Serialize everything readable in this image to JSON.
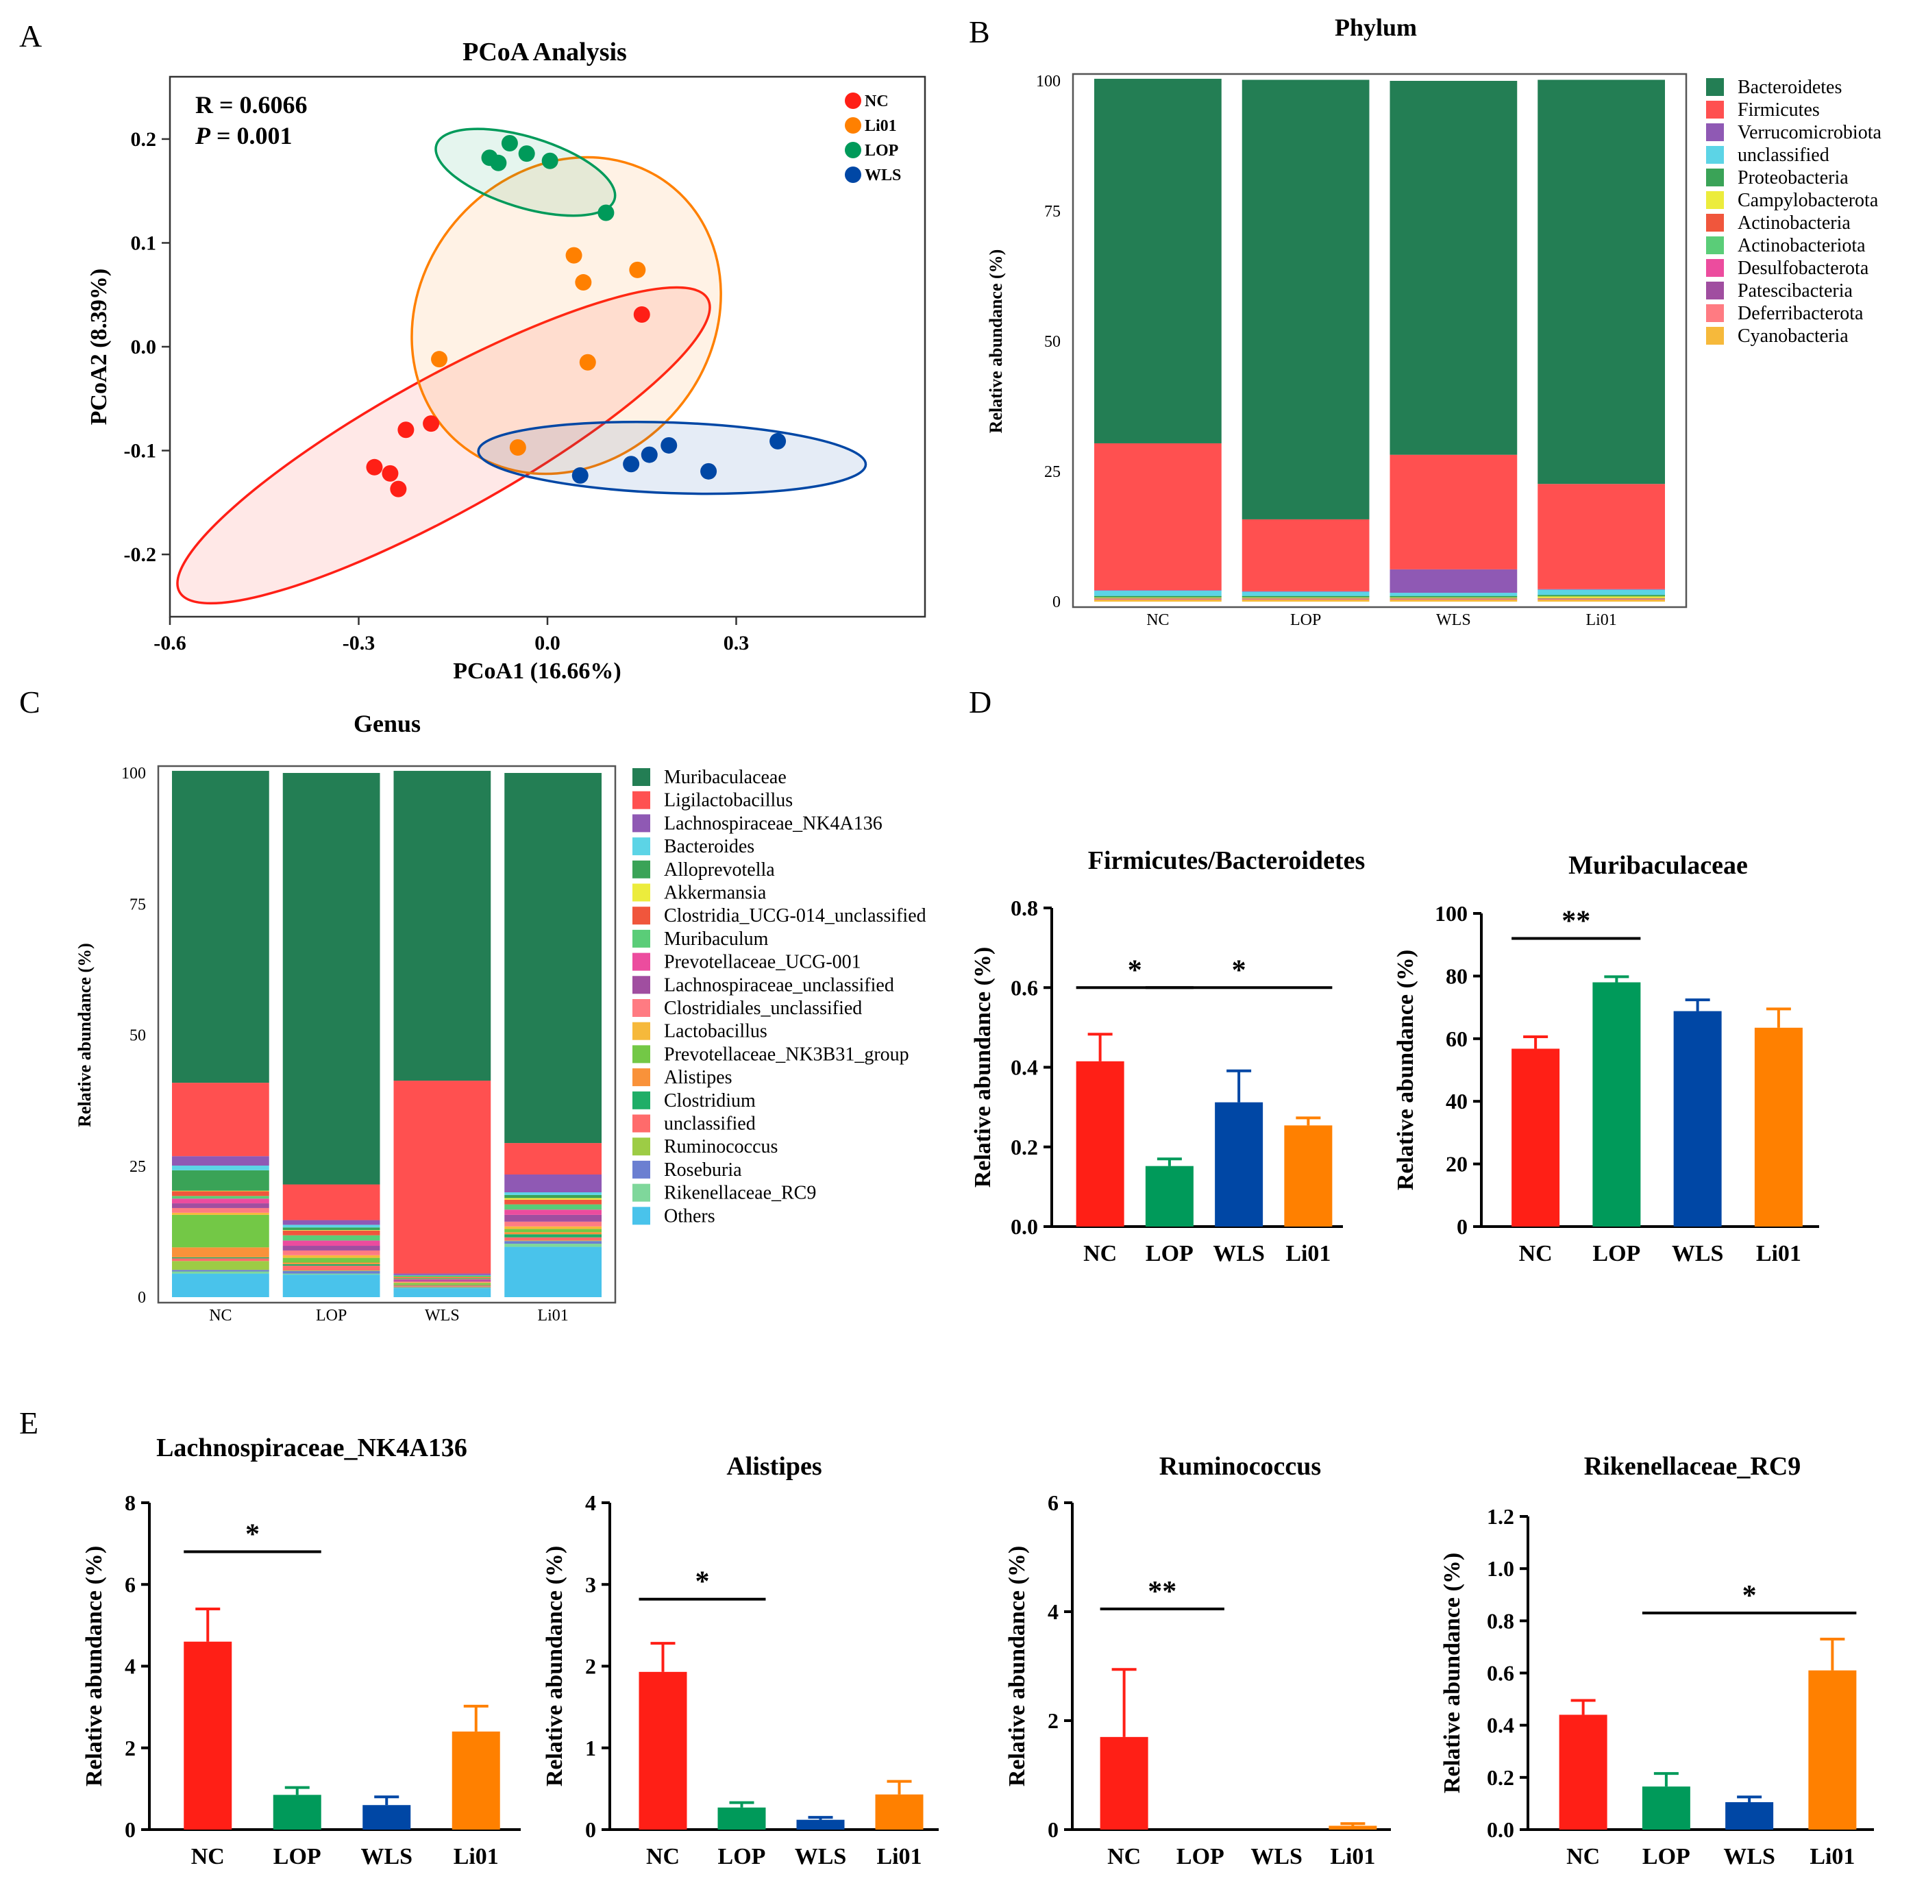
{
  "figure": {
    "panel_letters": [
      "A",
      "B",
      "C",
      "D",
      "E"
    ],
    "colors": {
      "NC": "#ff1f16",
      "Li01": "#ff8000",
      "LOP": "#009a5a",
      "WLS": "#0047a5"
    }
  },
  "chart_data": [
    {
      "panel": "A",
      "type": "scatter",
      "title": "PCoA Analysis",
      "xlabel": "PCoA1 (16.66%)",
      "ylabel": "PCoA2 (8.39%)",
      "xlim": [
        -0.6,
        0.6
      ],
      "ylim": [
        -0.26,
        0.26
      ],
      "xticks": [
        -0.6,
        -0.3,
        0.0,
        0.3
      ],
      "xtick_labels": [
        "-0.6",
        "-0.3",
        "0.0",
        "0.3"
      ],
      "yticks": [
        0.2,
        0.1,
        0.0,
        -0.1,
        -0.2
      ],
      "ytick_labels": [
        "0.2",
        "0.1",
        "0.0",
        "-0.1",
        "-0.2"
      ],
      "stat_r": "R = 0.6066",
      "stat_p_label": "P",
      "stat_p_value": " = 0.001",
      "legend": [
        "NC",
        "Li01",
        "LOP",
        "WLS"
      ],
      "series": [
        {
          "name": "NC",
          "points": [
            [
              0.15,
              0.031
            ],
            [
              -0.225,
              -0.08
            ],
            [
              -0.185,
              -0.074
            ],
            [
              -0.275,
              -0.116
            ],
            [
              -0.25,
              -0.122
            ],
            [
              -0.237,
              -0.137
            ]
          ],
          "ellipse": {
            "cx": -0.165,
            "cy": -0.095,
            "rx": 0.48,
            "ry": 0.065,
            "angle_deg": 29
          }
        },
        {
          "name": "Li01",
          "points": [
            [
              0.042,
              0.088
            ],
            [
              0.143,
              0.074
            ],
            [
              0.057,
              0.062
            ],
            [
              -0.172,
              -0.012
            ],
            [
              0.064,
              -0.015
            ],
            [
              -0.047,
              -0.097
            ]
          ],
          "ellipse": {
            "cx": 0.03,
            "cy": 0.03,
            "rx": 0.265,
            "ry": 0.14,
            "angle_deg": 50
          }
        },
        {
          "name": "LOP",
          "points": [
            [
              -0.092,
              0.182
            ],
            [
              -0.078,
              0.177
            ],
            [
              -0.06,
              0.196
            ],
            [
              -0.033,
              0.186
            ],
            [
              0.004,
              0.179
            ],
            [
              0.093,
              0.129
            ]
          ],
          "ellipse": {
            "cx": -0.035,
            "cy": 0.168,
            "rx": 0.148,
            "ry": 0.034,
            "angle_deg": -17
          }
        },
        {
          "name": "WLS",
          "points": [
            [
              0.052,
              -0.124
            ],
            [
              0.133,
              -0.113
            ],
            [
              0.162,
              -0.104
            ],
            [
              0.193,
              -0.095
            ],
            [
              0.256,
              -0.12
            ],
            [
              0.366,
              -0.091
            ]
          ],
          "ellipse": {
            "cx": 0.198,
            "cy": -0.107,
            "rx": 0.308,
            "ry": 0.034,
            "angle_deg": -2
          }
        }
      ]
    },
    {
      "panel": "B",
      "type": "bar",
      "stacked": true,
      "title": "Phylum",
      "xlabel": "",
      "ylabel": "Relative abundance (%)",
      "ylim": [
        0,
        100
      ],
      "yticks": [
        0,
        25,
        50,
        75,
        100
      ],
      "categories": [
        "NC",
        "LOP",
        "WLS",
        "Li01"
      ],
      "series": [
        {
          "name": "Bacteroidetes",
          "color": "#237e54",
          "values": [
            70.0,
            84.4,
            71.8,
            77.6
          ]
        },
        {
          "name": "Firmicutes",
          "color": "#ff5050",
          "values": [
            28.2,
            13.8,
            22.0,
            20.2
          ]
        },
        {
          "name": "Verrucomicrobiota",
          "color": "#8f59b4",
          "values": [
            0.1,
            0.1,
            4.5,
            0.1
          ]
        },
        {
          "name": "unclassified",
          "color": "#5cd4e6",
          "values": [
            1.0,
            0.8,
            0.6,
            1.0
          ]
        },
        {
          "name": "Proteobacteria",
          "color": "#3aa357",
          "values": [
            0.3,
            0.3,
            0.3,
            0.3
          ]
        },
        {
          "name": "Campylobacterota",
          "color": "#ecec3c",
          "values": [
            0.1,
            0.1,
            0.1,
            0.3
          ]
        },
        {
          "name": "Actinobacteria",
          "color": "#f0563c",
          "values": [
            0.1,
            0.1,
            0.1,
            0.1
          ]
        },
        {
          "name": "Actinobacteriota",
          "color": "#5acd78",
          "values": [
            0.05,
            0.05,
            0.05,
            0.05
          ]
        },
        {
          "name": "Desulfobacterota",
          "color": "#ec4c9e",
          "values": [
            0.05,
            0.05,
            0.05,
            0.05
          ]
        },
        {
          "name": "Patescibacteria",
          "color": "#a04ea0",
          "values": [
            0.05,
            0.05,
            0.05,
            0.05
          ]
        },
        {
          "name": "Deferribacterota",
          "color": "#ff7b82",
          "values": [
            0.05,
            0.05,
            0.05,
            0.05
          ]
        },
        {
          "name": "Cyanobacteria",
          "color": "#f6b93b",
          "values": [
            0.4,
            0.4,
            0.4,
            0.4
          ]
        }
      ]
    },
    {
      "panel": "C",
      "type": "bar",
      "stacked": true,
      "title": "Genus",
      "xlabel": "",
      "ylabel": "Relative abundance (%)",
      "ylim": [
        0,
        100
      ],
      "yticks": [
        0,
        25,
        50,
        75,
        100
      ],
      "categories": [
        "NC",
        "LOP",
        "WLS",
        "Li01"
      ],
      "series": [
        {
          "name": "Muribaculaceae",
          "color": "#237e54",
          "values": [
            59.5,
            78.5,
            59.1,
            70.6
          ]
        },
        {
          "name": "Ligilactobacillus",
          "color": "#ff5050",
          "values": [
            14.0,
            6.8,
            36.8,
            6.0
          ]
        },
        {
          "name": "Lachnospiraceae_NK4A136",
          "color": "#8f59b4",
          "values": [
            1.8,
            0.9,
            0.3,
            3.4
          ]
        },
        {
          "name": "Bacteroides",
          "color": "#5cd4e6",
          "values": [
            0.9,
            0.5,
            0.1,
            0.5
          ]
        },
        {
          "name": "Alloprevotella",
          "color": "#3aa357",
          "values": [
            3.9,
            0.5,
            0.2,
            0.6
          ]
        },
        {
          "name": "Akkermansia",
          "color": "#ecec3c",
          "values": [
            0.1,
            0.1,
            0.1,
            0.3
          ]
        },
        {
          "name": "Clostridia_UCG-014_unclassified",
          "color": "#f0563c",
          "values": [
            0.9,
            0.9,
            0.2,
            0.9
          ]
        },
        {
          "name": "Muribaculum",
          "color": "#5acd78",
          "values": [
            0.5,
            1.0,
            0.2,
            1.0
          ]
        },
        {
          "name": "Prevotellaceae_UCG-001",
          "color": "#ec4c9e",
          "values": [
            0.9,
            1.0,
            0.2,
            1.0
          ]
        },
        {
          "name": "Lachnospiraceae_unclassified",
          "color": "#a04ea0",
          "values": [
            0.9,
            0.9,
            0.2,
            1.3
          ]
        },
        {
          "name": "Clostridiales_unclassified",
          "color": "#ff7b82",
          "values": [
            0.9,
            0.9,
            0.2,
            0.9
          ]
        },
        {
          "name": "Lactobacillus",
          "color": "#f6b93b",
          "values": [
            0.4,
            0.5,
            0.1,
            0.5
          ]
        },
        {
          "name": "Prevotellaceae_NK3B31_group",
          "color": "#73c846",
          "values": [
            6.2,
            0.9,
            0.3,
            0.6
          ]
        },
        {
          "name": "Alistipes",
          "color": "#f9923a",
          "values": [
            1.9,
            0.3,
            0.1,
            0.4
          ]
        },
        {
          "name": "Clostridium",
          "color": "#1fae67",
          "values": [
            0.2,
            0.3,
            0.1,
            0.6
          ]
        },
        {
          "name": "unclassified",
          "color": "#ff6b6b",
          "values": [
            0.5,
            0.9,
            0.2,
            0.6
          ]
        },
        {
          "name": "Ruminococcus",
          "color": "#9dcc45",
          "values": [
            1.7,
            0.1,
            0.1,
            0.1
          ]
        },
        {
          "name": "Roseburia",
          "color": "#6b7fd1",
          "values": [
            0.3,
            0.5,
            0.1,
            0.5
          ]
        },
        {
          "name": "Rikenellaceae_RC9",
          "color": "#7fd79b",
          "values": [
            0.4,
            0.2,
            0.1,
            0.6
          ]
        },
        {
          "name": "Others",
          "color": "#49c3eb",
          "values": [
            4.5,
            4.3,
            1.7,
            9.6
          ]
        }
      ]
    },
    {
      "panel": "D",
      "type": "bar",
      "title": "Firmicutes/Bacteroidetes",
      "xlabel": "",
      "ylabel": "Relative abundance (%)",
      "ylim": [
        0,
        0.8
      ],
      "yticks": [
        0.0,
        0.2,
        0.4,
        0.6,
        0.8
      ],
      "ytick_labels": [
        "0.0",
        "0.2",
        "0.4",
        "0.6",
        "0.8"
      ],
      "categories": [
        "NC",
        "LOP",
        "WLS",
        "Li01"
      ],
      "values": [
        0.415,
        0.152,
        0.312,
        0.254
      ],
      "errors": [
        0.068,
        0.018,
        0.079,
        0.019
      ],
      "significance": [
        {
          "from": 0,
          "to": 1,
          "y": 0.6,
          "label": "*"
        },
        {
          "from": 1,
          "to": 3,
          "y": 0.6,
          "label": "*"
        }
      ]
    },
    {
      "panel": "D",
      "type": "bar",
      "title": "Muribaculaceae",
      "xlabel": "",
      "ylabel": "Relative abundance (%)",
      "ylim": [
        0,
        100
      ],
      "yticks": [
        0,
        20,
        40,
        60,
        80,
        100
      ],
      "ytick_labels": [
        "0",
        "20",
        "40",
        "60",
        "80",
        "100"
      ],
      "categories": [
        "NC",
        "LOP",
        "WLS",
        "Li01"
      ],
      "values": [
        56.8,
        78.0,
        68.8,
        63.5
      ],
      "errors": [
        3.8,
        1.8,
        3.6,
        6.0
      ],
      "significance": [
        {
          "from": 0,
          "to": 1,
          "y": 92,
          "label": "**"
        }
      ]
    },
    {
      "panel": "E",
      "type": "bar",
      "title": "Lachnospiraceae_NK4A136",
      "xlabel": "",
      "ylabel": "Relative abundance (%)",
      "ylim": [
        0,
        8
      ],
      "yticks": [
        0,
        2,
        4,
        6,
        8
      ],
      "ytick_labels": [
        "0",
        "2",
        "4",
        "6",
        "8"
      ],
      "categories": [
        "NC",
        "LOP",
        "WLS",
        "Li01"
      ],
      "values": [
        4.6,
        0.85,
        0.6,
        2.4
      ],
      "errors": [
        0.8,
        0.18,
        0.2,
        0.62
      ],
      "significance": [
        {
          "from": 0,
          "to": 1,
          "y": 6.8,
          "label": "*"
        }
      ]
    },
    {
      "panel": "E",
      "type": "bar",
      "title": "Alistipes",
      "xlabel": "",
      "ylabel": "Relative abundance (%)",
      "ylim": [
        0,
        4
      ],
      "yticks": [
        0,
        1,
        2,
        3,
        4
      ],
      "ytick_labels": [
        "0",
        "1",
        "2",
        "3",
        "4"
      ],
      "categories": [
        "NC",
        "LOP",
        "WLS",
        "Li01"
      ],
      "values": [
        1.93,
        0.27,
        0.12,
        0.43
      ],
      "errors": [
        0.35,
        0.06,
        0.03,
        0.16
      ],
      "significance": [
        {
          "from": 0,
          "to": 1,
          "y": 2.82,
          "label": "*"
        }
      ]
    },
    {
      "panel": "E",
      "type": "bar",
      "title": "Ruminococcus",
      "xlabel": "",
      "ylabel": "Relative abundance (%)",
      "ylim": [
        0,
        6
      ],
      "yticks": [
        0,
        2,
        4,
        6
      ],
      "ytick_labels": [
        "0",
        "2",
        "4",
        "6"
      ],
      "categories": [
        "NC",
        "LOP",
        "WLS",
        "Li01"
      ],
      "values": [
        1.7,
        0.0,
        0.0,
        0.07
      ],
      "errors": [
        1.24,
        0.0,
        0.0,
        0.04
      ],
      "significance": [
        {
          "from": 0,
          "to": 1,
          "y": 4.05,
          "label": "**"
        }
      ]
    },
    {
      "panel": "E",
      "type": "bar",
      "title": "Rikenellaceae_RC9",
      "xlabel": "",
      "ylabel": "Relative abundance (%)",
      "ylim": [
        0,
        1.2
      ],
      "yticks": [
        0.0,
        0.2,
        0.4,
        0.6,
        0.8,
        1.0,
        1.2
      ],
      "ytick_labels": [
        "0.0",
        "0.2",
        "0.4",
        "0.6",
        "0.8",
        "1.0",
        "1.2"
      ],
      "categories": [
        "NC",
        "LOP",
        "WLS",
        "Li01"
      ],
      "values": [
        0.44,
        0.165,
        0.105,
        0.61
      ],
      "errors": [
        0.055,
        0.05,
        0.02,
        0.12
      ],
      "significance": [
        {
          "from": 1,
          "to": 3,
          "y": 0.83,
          "label": "*"
        }
      ]
    }
  ]
}
